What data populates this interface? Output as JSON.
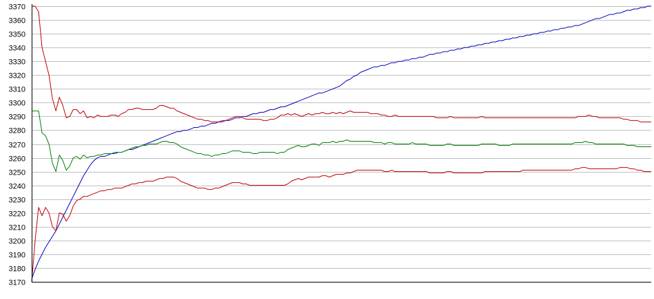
{
  "chart_data": {
    "type": "line",
    "title": "",
    "xlabel": "",
    "ylabel": "",
    "ylim": [
      3170,
      3370
    ],
    "yticks": [
      3170,
      3180,
      3190,
      3200,
      3210,
      3220,
      3230,
      3240,
      3250,
      3260,
      3270,
      3280,
      3290,
      3300,
      3310,
      3320,
      3330,
      3340,
      3350,
      3360,
      3370
    ],
    "grid": true,
    "legend": "none",
    "n_points": 180,
    "series": [
      {
        "color": "#0000c0",
        "values": [
          3172,
          3179,
          3185,
          3190,
          3195,
          3199,
          3203,
          3207,
          3212,
          3217,
          3222,
          3227,
          3232,
          3237,
          3242,
          3247,
          3251,
          3255,
          3258,
          3260,
          3261,
          3261,
          3262,
          3263,
          3263,
          3264,
          3264,
          3265,
          3266,
          3266,
          3267,
          3268,
          3269,
          3270,
          3271,
          3272,
          3273,
          3274,
          3275,
          3276,
          3277,
          3278,
          3279,
          3279,
          3280,
          3280,
          3281,
          3282,
          3282,
          3283,
          3283,
          3284,
          3285,
          3285,
          3286,
          3286,
          3287,
          3287,
          3288,
          3289,
          3289,
          3290,
          3290,
          3291,
          3292,
          3292,
          3293,
          3293,
          3294,
          3295,
          3295,
          3296,
          3297,
          3297,
          3298,
          3299,
          3300,
          3301,
          3302,
          3303,
          3304,
          3305,
          3306,
          3307,
          3307,
          3308,
          3309,
          3310,
          3311,
          3312,
          3314,
          3316,
          3317,
          3319,
          3320,
          3322,
          3323,
          3324,
          3325,
          3326,
          3326,
          3327,
          3327,
          3328,
          3329,
          3329,
          3330,
          3330,
          3331,
          3331,
          3332,
          3332,
          3333,
          3333,
          3334,
          3335,
          3335,
          3336,
          3336,
          3337,
          3337,
          3338,
          3338,
          3339,
          3339,
          3340,
          3340,
          3341,
          3341,
          3342,
          3342,
          3343,
          3343,
          3344,
          3344,
          3345,
          3345,
          3346,
          3346,
          3347,
          3347,
          3348,
          3348,
          3349,
          3349,
          3350,
          3350,
          3351,
          3351,
          3352,
          3352,
          3353,
          3353,
          3354,
          3354,
          3355,
          3355,
          3356,
          3356,
          3357,
          3358,
          3359,
          3360,
          3361,
          3361,
          3362,
          3363,
          3364,
          3364,
          3365,
          3365,
          3366,
          3367,
          3367,
          3368,
          3368,
          3369,
          3369,
          3370,
          3370
        ]
      },
      {
        "color": "#c00000",
        "values": [
          3370,
          3370,
          3366,
          3340,
          3330,
          3320,
          3303,
          3294,
          3304,
          3298,
          3289,
          3290,
          3295,
          3295,
          3292,
          3294,
          3289,
          3290,
          3289,
          3291,
          3290,
          3290,
          3290,
          3291,
          3291,
          3290,
          3292,
          3293,
          3295,
          3295,
          3296,
          3296,
          3295,
          3295,
          3295,
          3295,
          3296,
          3298,
          3298,
          3297,
          3296,
          3296,
          3294,
          3293,
          3292,
          3291,
          3290,
          3289,
          3288,
          3288,
          3287,
          3287,
          3286,
          3286,
          3286,
          3287,
          3287,
          3288,
          3289,
          3290,
          3290,
          3289,
          3288,
          3288,
          3288,
          3288,
          3288,
          3287,
          3287,
          3288,
          3288,
          3289,
          3291,
          3291,
          3292,
          3291,
          3292,
          3291,
          3290,
          3291,
          3292,
          3291,
          3292,
          3292,
          3293,
          3292,
          3292,
          3293,
          3292,
          3293,
          3292,
          3293,
          3294,
          3293,
          3293,
          3293,
          3293,
          3293,
          3292,
          3292,
          3292,
          3291,
          3291,
          3290,
          3290,
          3291,
          3290,
          3290,
          3290,
          3290,
          3290,
          3290,
          3290,
          3290,
          3290,
          3290,
          3290,
          3289,
          3289,
          3289,
          3289,
          3290,
          3289,
          3289,
          3289,
          3289,
          3289,
          3289,
          3289,
          3289,
          3290,
          3289,
          3289,
          3289,
          3289,
          3289,
          3289,
          3289,
          3289,
          3289,
          3289,
          3289,
          3289,
          3289,
          3289,
          3289,
          3289,
          3289,
          3289,
          3289,
          3289,
          3289,
          3289,
          3289,
          3289,
          3289,
          3289,
          3289,
          3290,
          3290,
          3290,
          3291,
          3290,
          3290,
          3289,
          3289,
          3289,
          3289,
          3289,
          3289,
          3289,
          3288,
          3288,
          3287,
          3287,
          3287,
          3286,
          3286,
          3286,
          3286
        ]
      },
      {
        "color": "#008000",
        "values": [
          3294,
          3294,
          3294,
          3278,
          3276,
          3270,
          3256,
          3250,
          3262,
          3258,
          3251,
          3254,
          3260,
          3261,
          3259,
          3262,
          3260,
          3261,
          3261,
          3262,
          3262,
          3263,
          3263,
          3263,
          3264,
          3264,
          3264,
          3265,
          3266,
          3267,
          3268,
          3268,
          3269,
          3269,
          3270,
          3270,
          3270,
          3271,
          3272,
          3272,
          3271,
          3271,
          3270,
          3268,
          3267,
          3266,
          3265,
          3264,
          3263,
          3263,
          3262,
          3262,
          3261,
          3262,
          3262,
          3263,
          3263,
          3264,
          3265,
          3265,
          3265,
          3264,
          3264,
          3264,
          3263,
          3263,
          3264,
          3264,
          3264,
          3264,
          3264,
          3263,
          3264,
          3264,
          3266,
          3267,
          3268,
          3269,
          3268,
          3268,
          3269,
          3270,
          3270,
          3269,
          3271,
          3271,
          3271,
          3272,
          3271,
          3272,
          3272,
          3273,
          3272,
          3272,
          3272,
          3272,
          3272,
          3272,
          3272,
          3271,
          3271,
          3271,
          3270,
          3271,
          3271,
          3270,
          3270,
          3270,
          3270,
          3270,
          3271,
          3270,
          3270,
          3270,
          3270,
          3269,
          3269,
          3269,
          3269,
          3269,
          3270,
          3270,
          3269,
          3269,
          3269,
          3269,
          3269,
          3269,
          3269,
          3269,
          3270,
          3270,
          3270,
          3270,
          3270,
          3269,
          3269,
          3269,
          3269,
          3270,
          3270,
          3270,
          3270,
          3270,
          3270,
          3270,
          3270,
          3270,
          3270,
          3270,
          3270,
          3270,
          3270,
          3270,
          3270,
          3270,
          3270,
          3271,
          3271,
          3271,
          3272,
          3271,
          3271,
          3270,
          3270,
          3270,
          3270,
          3270,
          3270,
          3270,
          3270,
          3270,
          3269,
          3269,
          3269,
          3268,
          3268,
          3268,
          3268,
          3268
        ]
      },
      {
        "color": "#c00000",
        "values": [
          3170,
          3200,
          3224,
          3218,
          3224,
          3220,
          3210,
          3207,
          3220,
          3219,
          3214,
          3218,
          3225,
          3229,
          3230,
          3232,
          3232,
          3233,
          3234,
          3235,
          3236,
          3236,
          3237,
          3237,
          3238,
          3238,
          3238,
          3239,
          3240,
          3241,
          3241,
          3242,
          3242,
          3243,
          3243,
          3243,
          3244,
          3245,
          3245,
          3246,
          3246,
          3246,
          3245,
          3243,
          3242,
          3241,
          3240,
          3239,
          3238,
          3238,
          3238,
          3237,
          3237,
          3238,
          3238,
          3239,
          3240,
          3241,
          3242,
          3242,
          3242,
          3241,
          3241,
          3240,
          3240,
          3240,
          3240,
          3240,
          3240,
          3240,
          3240,
          3240,
          3240,
          3240,
          3241,
          3243,
          3244,
          3245,
          3244,
          3245,
          3246,
          3246,
          3246,
          3246,
          3247,
          3247,
          3246,
          3247,
          3248,
          3248,
          3248,
          3249,
          3249,
          3250,
          3251,
          3251,
          3251,
          3251,
          3251,
          3251,
          3251,
          3251,
          3250,
          3250,
          3251,
          3250,
          3250,
          3250,
          3250,
          3250,
          3250,
          3250,
          3250,
          3250,
          3250,
          3249,
          3249,
          3249,
          3249,
          3249,
          3250,
          3250,
          3249,
          3249,
          3249,
          3249,
          3249,
          3249,
          3249,
          3249,
          3249,
          3250,
          3250,
          3250,
          3250,
          3250,
          3250,
          3250,
          3250,
          3250,
          3250,
          3250,
          3251,
          3251,
          3251,
          3251,
          3251,
          3251,
          3251,
          3251,
          3251,
          3251,
          3251,
          3251,
          3251,
          3251,
          3251,
          3252,
          3252,
          3253,
          3253,
          3252,
          3252,
          3252,
          3252,
          3252,
          3252,
          3252,
          3252,
          3252,
          3253,
          3253,
          3253,
          3252,
          3252,
          3251,
          3251,
          3250,
          3250,
          3250
        ]
      }
    ]
  }
}
